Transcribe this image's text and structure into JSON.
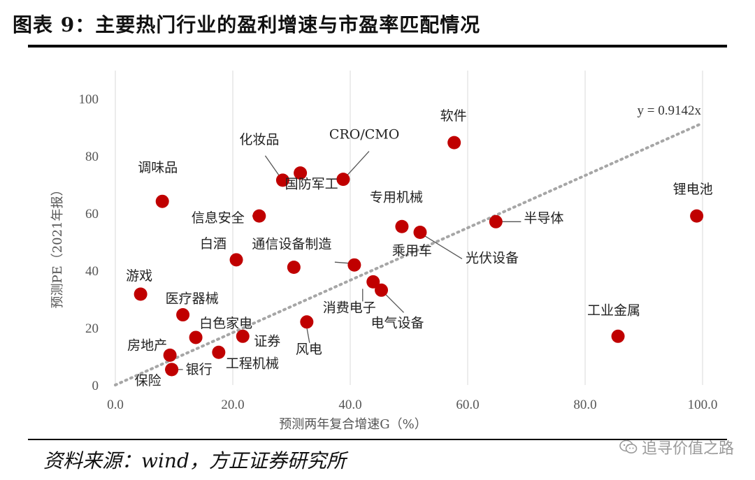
{
  "header": {
    "title": "图表 9：主要热门行业的盈利增速与市盈率匹配情况"
  },
  "footer": {
    "source": "资料来源：wind，方正证券研究所"
  },
  "watermark": {
    "text": "追寻价值之路",
    "icon": "wechat-icon"
  },
  "chart_data": {
    "type": "scatter",
    "xlabel": "预测两年复合增速G（%）",
    "ylabel": "预测PE（2021年报）",
    "xlim": [
      0,
      100
    ],
    "ylim": [
      0,
      100
    ],
    "xticks": [
      "0.0",
      "20.0",
      "40.0",
      "60.0",
      "80.0",
      "100.0"
    ],
    "yticks": [
      "0",
      "20",
      "40",
      "60",
      "80",
      "100"
    ],
    "trendline": {
      "label": "y = 0.9142x",
      "slope": 0.9142,
      "style": "dotted"
    },
    "grid": {
      "vertical": true,
      "horizontal": false
    },
    "point_color": "#c00000",
    "points": [
      {
        "name": "软件",
        "x": 57.7,
        "y": 84.6
      },
      {
        "name": "化妆品",
        "x": 28.5,
        "y": 71.5
      },
      {
        "name": "国防军工",
        "x": 31.5,
        "y": 74.0
      },
      {
        "name": "CRO/CMO",
        "x": 38.8,
        "y": 71.8
      },
      {
        "name": "调味品",
        "x": 8.0,
        "y": 64.1
      },
      {
        "name": "信息安全",
        "x": 24.5,
        "y": 59.0
      },
      {
        "name": "专用机械",
        "x": 48.8,
        "y": 55.3
      },
      {
        "name": "光伏设备",
        "x": 51.9,
        "y": 53.3
      },
      {
        "name": "半导体",
        "x": 64.8,
        "y": 57.0
      },
      {
        "name": "锂电池",
        "x": 99.0,
        "y": 59.0
      },
      {
        "name": "白酒",
        "x": 20.6,
        "y": 43.7
      },
      {
        "name": "通信设备制造",
        "x": 30.4,
        "y": 41.1
      },
      {
        "name": "乘用车",
        "x": 40.7,
        "y": 41.9
      },
      {
        "name": "消费电子",
        "x": 43.9,
        "y": 36.0
      },
      {
        "name": "电气设备",
        "x": 45.3,
        "y": 33.1
      },
      {
        "name": "游戏",
        "x": 4.3,
        "y": 31.7
      },
      {
        "name": "医疗器械",
        "x": 11.5,
        "y": 24.5
      },
      {
        "name": "风电",
        "x": 32.6,
        "y": 22.0
      },
      {
        "name": "白色家电",
        "x": 13.7,
        "y": 16.6
      },
      {
        "name": "证券",
        "x": 21.7,
        "y": 17.0
      },
      {
        "name": "工业金属",
        "x": 85.6,
        "y": 17.0
      },
      {
        "name": "房地产",
        "x": 9.3,
        "y": 10.4
      },
      {
        "name": "工程机械",
        "x": 17.6,
        "y": 11.4
      },
      {
        "name": "银行",
        "x": 9.6,
        "y": 5.4
      },
      {
        "name": "保险",
        "x": 9.6,
        "y": 5.4
      }
    ]
  }
}
